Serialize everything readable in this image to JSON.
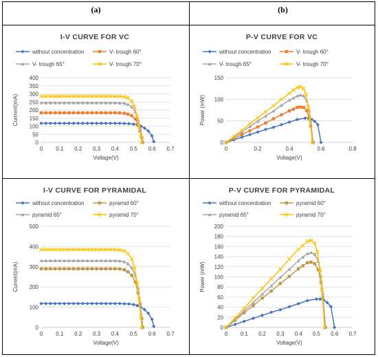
{
  "panel_labels": {
    "a": "(a)",
    "b": "(b)"
  },
  "chart_data": [
    {
      "type": "line",
      "title": "I-V CURVE FOR VC",
      "xlabel": "Voltage(V)",
      "ylabel": "Currrent(mA)",
      "xlim": [
        0,
        0.7
      ],
      "ylim": [
        0,
        400
      ],
      "xticks": [
        "0",
        "0.1",
        "0.2",
        "0.3",
        "0.4",
        "0.5",
        "0.6",
        "0.7"
      ],
      "yticks": [
        "0",
        "50",
        "100",
        "150",
        "200",
        "250",
        "300",
        "350",
        "400"
      ],
      "legend": "top, 2 columns",
      "series": [
        {
          "name": "without concentration",
          "color": "#4472C4",
          "marker": "diamond",
          "x": [
            0,
            0.025,
            0.05,
            0.075,
            0.1,
            0.125,
            0.15,
            0.175,
            0.2,
            0.225,
            0.25,
            0.275,
            0.3,
            0.325,
            0.35,
            0.375,
            0.4,
            0.425,
            0.45,
            0.475,
            0.5,
            0.52,
            0.54,
            0.56,
            0.58,
            0.6,
            0.61
          ],
          "y": [
            118,
            118,
            118,
            118,
            118,
            118,
            118,
            118,
            118,
            118,
            118,
            118,
            118,
            118,
            118,
            118,
            118,
            118,
            117,
            116,
            113,
            108,
            100,
            88,
            70,
            40,
            5
          ]
        },
        {
          "name": "V- trough 60°",
          "color": "#ED7D31",
          "marker": "square",
          "x": [
            0,
            0.025,
            0.05,
            0.075,
            0.1,
            0.125,
            0.15,
            0.175,
            0.2,
            0.225,
            0.25,
            0.275,
            0.3,
            0.325,
            0.35,
            0.375,
            0.4,
            0.425,
            0.45,
            0.47,
            0.49,
            0.51,
            0.525,
            0.535,
            0.545,
            0.55
          ],
          "y": [
            183,
            183,
            183,
            183,
            183,
            183,
            183,
            183,
            183,
            183,
            183,
            183,
            183,
            183,
            183,
            183,
            183,
            182,
            180,
            175,
            165,
            145,
            110,
            70,
            30,
            0
          ]
        },
        {
          "name": "V- trough 65°",
          "color": "#A5A5A5",
          "marker": "triangle",
          "x": [
            0,
            0.025,
            0.05,
            0.075,
            0.1,
            0.125,
            0.15,
            0.175,
            0.2,
            0.225,
            0.25,
            0.275,
            0.3,
            0.325,
            0.35,
            0.375,
            0.4,
            0.425,
            0.45,
            0.47,
            0.49,
            0.51,
            0.525,
            0.535,
            0.545,
            0.55
          ],
          "y": [
            245,
            245,
            245,
            245,
            245,
            245,
            245,
            245,
            245,
            245,
            245,
            245,
            245,
            245,
            245,
            245,
            245,
            244,
            242,
            235,
            220,
            190,
            140,
            90,
            35,
            0
          ]
        },
        {
          "name": "V- trough 70°",
          "color": "#FFC000",
          "marker": "x",
          "x": [
            0,
            0.025,
            0.05,
            0.075,
            0.1,
            0.125,
            0.15,
            0.175,
            0.2,
            0.225,
            0.25,
            0.275,
            0.3,
            0.325,
            0.35,
            0.375,
            0.4,
            0.425,
            0.45,
            0.47,
            0.49,
            0.505,
            0.52,
            0.53,
            0.54,
            0.545
          ],
          "y": [
            285,
            285,
            285,
            285,
            285,
            285,
            285,
            285,
            285,
            285,
            285,
            285,
            285,
            285,
            285,
            285,
            285,
            284,
            282,
            275,
            255,
            220,
            160,
            100,
            40,
            0
          ]
        }
      ]
    },
    {
      "type": "line",
      "title": "P-V CURVE FOR VC",
      "xlabel": "Voltage(V)",
      "ylabel": "Power (mW)",
      "xlim": [
        0,
        0.8
      ],
      "ylim": [
        0,
        150
      ],
      "xticks": [
        "0",
        "0.2",
        "0.4",
        "0.6",
        "0.8"
      ],
      "yticks": [
        "0",
        "50",
        "100",
        "150"
      ],
      "legend": "top, 2 columns",
      "series": [
        {
          "name": "without concentration",
          "color": "#4472C4",
          "marker": "diamond",
          "x": [
            0,
            0.05,
            0.1,
            0.15,
            0.2,
            0.25,
            0.3,
            0.35,
            0.4,
            0.45,
            0.5,
            0.52,
            0.54,
            0.56,
            0.58,
            0.6
          ],
          "y": [
            0,
            6,
            12,
            18,
            24,
            30,
            35,
            41,
            47,
            53,
            56,
            56,
            54,
            49,
            41,
            0
          ]
        },
        {
          "name": "V- trough 60°",
          "color": "#ED7D31",
          "marker": "square",
          "x": [
            0,
            0.05,
            0.1,
            0.15,
            0.2,
            0.25,
            0.3,
            0.35,
            0.4,
            0.425,
            0.45,
            0.47,
            0.49,
            0.51,
            0.525,
            0.535,
            0.55
          ],
          "y": [
            0,
            9,
            18,
            27,
            36,
            45,
            55,
            64,
            73,
            77,
            81,
            82,
            81,
            74,
            58,
            38,
            0
          ]
        },
        {
          "name": "V- trough 65°",
          "color": "#A5A5A5",
          "marker": "triangle",
          "x": [
            0,
            0.05,
            0.1,
            0.15,
            0.2,
            0.25,
            0.3,
            0.35,
            0.4,
            0.425,
            0.45,
            0.47,
            0.49,
            0.51,
            0.525,
            0.535,
            0.55
          ],
          "y": [
            0,
            12,
            24,
            37,
            49,
            61,
            73,
            86,
            98,
            103,
            108,
            110,
            108,
            97,
            74,
            48,
            0
          ]
        },
        {
          "name": "V- trough 70°",
          "color": "#FFC000",
          "marker": "x",
          "x": [
            0,
            0.05,
            0.1,
            0.15,
            0.2,
            0.25,
            0.3,
            0.35,
            0.4,
            0.425,
            0.45,
            0.47,
            0.49,
            0.505,
            0.52,
            0.53,
            0.545
          ],
          "y": [
            0,
            14,
            28,
            43,
            57,
            71,
            85,
            100,
            114,
            121,
            127,
            129,
            125,
            111,
            83,
            53,
            0
          ]
        }
      ]
    },
    {
      "type": "line",
      "title": "I-V CURVE FOR PYRAMIDAL",
      "xlabel": "Voltage(V)",
      "ylabel": "Current(mA)",
      "xlim": [
        0,
        0.7
      ],
      "ylim": [
        0,
        500
      ],
      "xticks": [
        "0",
        "0.1",
        "0.2",
        "0.3",
        "0.4",
        "0.5",
        "0.6",
        "0.7"
      ],
      "yticks": [
        "0",
        "100",
        "200",
        "300",
        "400",
        "500"
      ],
      "legend": "top, 2 columns",
      "series": [
        {
          "name": "without concentration",
          "color": "#4472C4",
          "marker": "diamond",
          "x": [
            0,
            0.025,
            0.05,
            0.075,
            0.1,
            0.125,
            0.15,
            0.175,
            0.2,
            0.225,
            0.25,
            0.275,
            0.3,
            0.325,
            0.35,
            0.375,
            0.4,
            0.425,
            0.45,
            0.475,
            0.5,
            0.52,
            0.54,
            0.56,
            0.58,
            0.6,
            0.61
          ],
          "y": [
            118,
            118,
            118,
            118,
            118,
            118,
            118,
            118,
            118,
            118,
            118,
            118,
            118,
            118,
            118,
            118,
            118,
            118,
            117,
            116,
            113,
            108,
            100,
            88,
            70,
            40,
            5
          ]
        },
        {
          "name": "pyramid 60°",
          "color": "#C0964B",
          "marker": "square",
          "x": [
            0,
            0.025,
            0.05,
            0.075,
            0.1,
            0.125,
            0.15,
            0.175,
            0.2,
            0.225,
            0.25,
            0.275,
            0.3,
            0.325,
            0.35,
            0.375,
            0.4,
            0.425,
            0.45,
            0.47,
            0.49,
            0.51,
            0.525,
            0.535,
            0.545,
            0.55
          ],
          "y": [
            290,
            290,
            290,
            290,
            290,
            290,
            290,
            290,
            290,
            290,
            290,
            290,
            290,
            290,
            290,
            290,
            290,
            289,
            285,
            275,
            258,
            225,
            170,
            110,
            45,
            0
          ]
        },
        {
          "name": "pyramid 65°",
          "color": "#A5A5A5",
          "marker": "triangle",
          "x": [
            0,
            0.025,
            0.05,
            0.075,
            0.1,
            0.125,
            0.15,
            0.175,
            0.2,
            0.225,
            0.25,
            0.275,
            0.3,
            0.325,
            0.35,
            0.375,
            0.4,
            0.425,
            0.45,
            0.47,
            0.49,
            0.51,
            0.525,
            0.535,
            0.545,
            0.55
          ],
          "y": [
            330,
            330,
            330,
            330,
            330,
            330,
            330,
            330,
            330,
            330,
            330,
            330,
            330,
            330,
            330,
            330,
            330,
            329,
            325,
            315,
            295,
            258,
            195,
            125,
            50,
            0
          ]
        },
        {
          "name": "pyramid 70°",
          "color": "#FFC000",
          "marker": "x",
          "x": [
            0,
            0.025,
            0.05,
            0.075,
            0.1,
            0.125,
            0.15,
            0.175,
            0.2,
            0.225,
            0.25,
            0.275,
            0.3,
            0.325,
            0.35,
            0.375,
            0.4,
            0.425,
            0.45,
            0.47,
            0.49,
            0.505,
            0.52,
            0.53,
            0.54,
            0.545
          ],
          "y": [
            385,
            385,
            385,
            385,
            385,
            385,
            385,
            385,
            385,
            385,
            385,
            385,
            385,
            385,
            385,
            385,
            385,
            383,
            378,
            365,
            340,
            295,
            220,
            140,
            55,
            0
          ]
        }
      ]
    },
    {
      "type": "line",
      "title": "P-V CURVE FOR  PYRAMIDAL",
      "xlabel": "Voltage(V)",
      "ylabel": "Power (mW)",
      "xlim": [
        0,
        0.7
      ],
      "ylim": [
        0,
        200
      ],
      "xticks": [
        "0",
        "0.1",
        "0.2",
        "0.3",
        "0.4",
        "0.5",
        "0.6",
        "0.7"
      ],
      "yticks": [
        "0",
        "20",
        "40",
        "60",
        "80",
        "100",
        "120",
        "140",
        "160",
        "180",
        "200"
      ],
      "legend": "top, 2 columns",
      "series": [
        {
          "name": "without concentration",
          "color": "#4472C4",
          "marker": "diamond",
          "x": [
            0,
            0.05,
            0.1,
            0.15,
            0.2,
            0.25,
            0.3,
            0.35,
            0.4,
            0.45,
            0.5,
            0.52,
            0.54,
            0.56,
            0.58,
            0.6
          ],
          "y": [
            0,
            6,
            12,
            18,
            24,
            30,
            35,
            41,
            47,
            53,
            56,
            56,
            54,
            49,
            41,
            0
          ]
        },
        {
          "name": "pyramid 60°",
          "color": "#C0964B",
          "marker": "square",
          "x": [
            0,
            0.05,
            0.1,
            0.15,
            0.2,
            0.25,
            0.3,
            0.35,
            0.4,
            0.425,
            0.45,
            0.47,
            0.49,
            0.51,
            0.525,
            0.535,
            0.55
          ],
          "y": [
            0,
            14,
            29,
            43,
            58,
            72,
            87,
            101,
            116,
            122,
            128,
            129,
            126,
            114,
            89,
            59,
            0
          ]
        },
        {
          "name": "pyramid 65°",
          "color": "#A5A5A5",
          "marker": "triangle",
          "x": [
            0,
            0.05,
            0.1,
            0.15,
            0.2,
            0.25,
            0.3,
            0.35,
            0.4,
            0.425,
            0.45,
            0.47,
            0.49,
            0.51,
            0.525,
            0.535,
            0.55
          ],
          "y": [
            0,
            16,
            33,
            49,
            66,
            82,
            99,
            115,
            132,
            139,
            146,
            148,
            145,
            131,
            102,
            67,
            0
          ]
        },
        {
          "name": "pyramid 70°",
          "color": "#FFC000",
          "marker": "x",
          "x": [
            0,
            0.05,
            0.1,
            0.15,
            0.2,
            0.25,
            0.3,
            0.35,
            0.4,
            0.425,
            0.45,
            0.47,
            0.49,
            0.505,
            0.52,
            0.53,
            0.545
          ],
          "y": [
            0,
            19,
            38,
            58,
            77,
            96,
            115,
            135,
            154,
            162,
            170,
            172,
            167,
            149,
            114,
            74,
            0
          ]
        }
      ]
    }
  ]
}
